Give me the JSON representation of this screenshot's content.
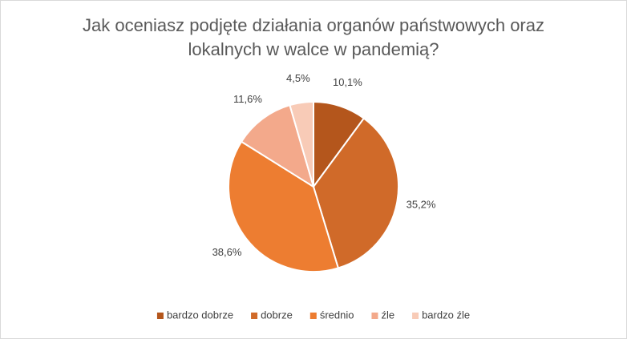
{
  "chart_data": {
    "type": "pie",
    "title": "Jak oceniasz podjęte działania organów państwowych oraz lokalnych w walce w pandemią?",
    "categories": [
      "bardzo dobrze",
      "dobrze",
      "średnio",
      "źle",
      "bardzo źle"
    ],
    "values": [
      10.1,
      35.2,
      38.6,
      11.6,
      4.5
    ],
    "value_labels": [
      "10,1%",
      "35,2%",
      "38,6%",
      "11,6%",
      "4,5%"
    ],
    "colors": [
      "#b4561c",
      "#d06a29",
      "#ed7d31",
      "#f3a98b",
      "#f8cbb7"
    ],
    "legend": "bottom"
  }
}
